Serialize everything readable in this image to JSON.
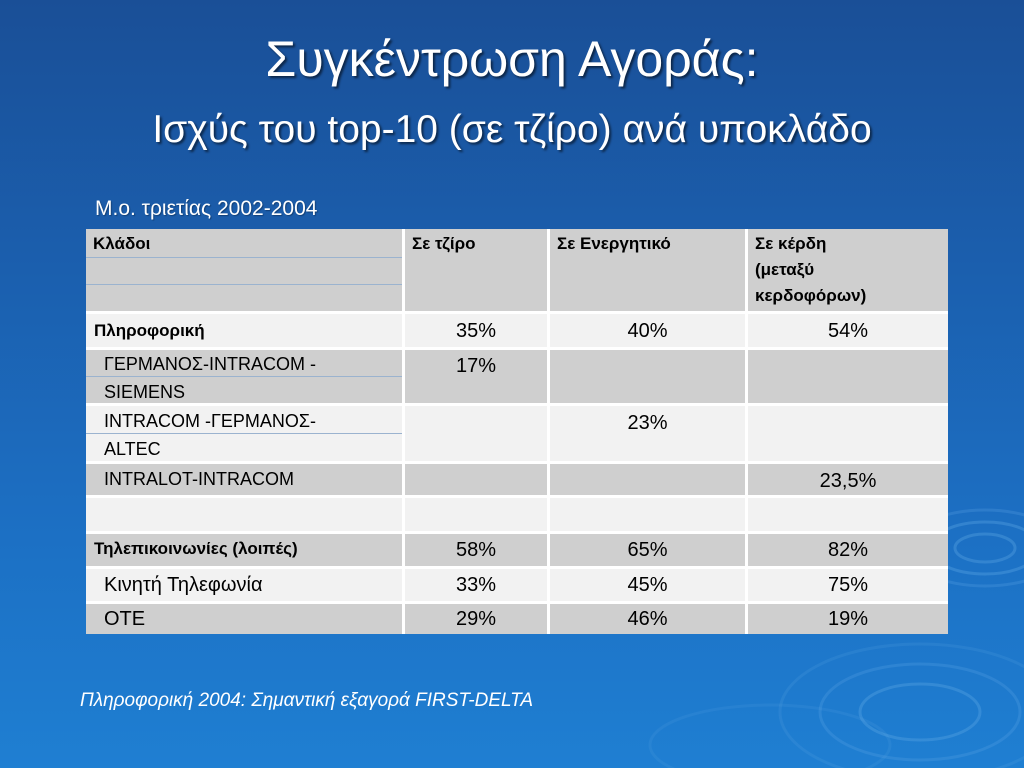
{
  "title": "Συγκέντρωση Αγοράς:",
  "subtitle": "Ισχύς του top-10 (σε τζίρο) ανά υποκλάδο",
  "caption": "Μ.ο. τριετίας 2002-2004",
  "table": {
    "headers": [
      "Κλάδοι",
      "Σε τζίρο",
      "Σε Ενεργητικό",
      "Σε κέρδη\n(μεταξύ\nκερδοφόρων)"
    ],
    "rows": [
      {
        "label": "Πληροφορική",
        "turnover": "35%",
        "assets": "40%",
        "profits": "54%",
        "type": "category"
      },
      {
        "label": "ΓΕΡΜΑΝΟΣ-INTRACOM -\nSIEMENS",
        "turnover": "17%",
        "assets": "",
        "profits": "",
        "type": "item"
      },
      {
        "label": "INTRACOM -ΓΕΡΜΑΝΟΣ-\nALTEC",
        "turnover": "",
        "assets": "23%",
        "profits": "",
        "type": "item"
      },
      {
        "label": "INTRALOT-INTRACOM",
        "turnover": "",
        "assets": "",
        "profits": "23,5%",
        "type": "item"
      },
      {
        "label": "",
        "turnover": "",
        "assets": "",
        "profits": "",
        "type": "blank"
      },
      {
        "label": "Τηλεπικοινωνίες (λοιπές)",
        "turnover": "58%",
        "assets": "65%",
        "profits": "82%",
        "type": "category"
      },
      {
        "label": "Κινητή Τηλεφωνία",
        "turnover": "33%",
        "assets": "45%",
        "profits": "75%",
        "type": "item"
      },
      {
        "label": "ΟΤΕ",
        "turnover": "29%",
        "assets": "46%",
        "profits": "19%",
        "type": "item"
      }
    ]
  },
  "footer": "Πληροφορική 2004: Σημαντική εξαγορά FIRST-DELTA",
  "colors": {
    "background": "#1c62b3",
    "row_gray": "#cfcfcf",
    "row_light": "#f2f2f2",
    "text": "#ffffff"
  }
}
